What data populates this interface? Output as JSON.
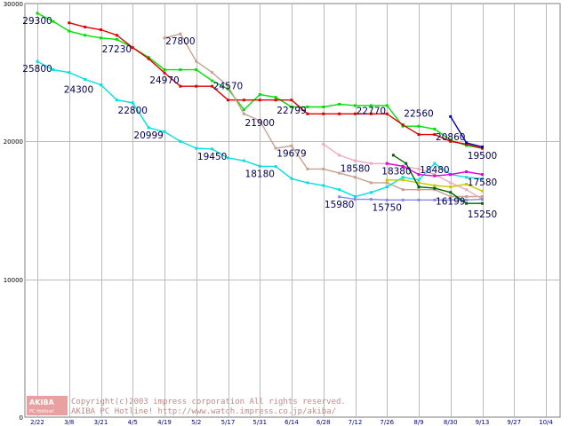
{
  "chart_data": {
    "type": "line",
    "title": "",
    "xlabel": "",
    "ylabel": "",
    "ylim": [
      0,
      30000
    ],
    "y_ticks": [
      "0",
      "10000",
      "20000",
      "30000"
    ],
    "x_ticks": [
      "2/22",
      "3/8",
      "3/21",
      "4/5",
      "4/19",
      "5/2",
      "5/17",
      "5/31",
      "6/14",
      "6/28",
      "7/12",
      "7/26",
      "8/9",
      "8/30",
      "9/13",
      "9/27",
      "10/4"
    ],
    "grid": true,
    "series": [
      {
        "name": "green",
        "color": "#00e000",
        "points": [
          [
            0,
            29300
          ],
          [
            0.5,
            28700
          ],
          [
            1,
            28000
          ],
          [
            1.5,
            27700
          ],
          [
            2,
            27500
          ],
          [
            2.5,
            27400
          ],
          [
            3,
            26800
          ],
          [
            3.5,
            26100
          ],
          [
            4,
            25200
          ],
          [
            4.5,
            25200
          ],
          [
            5,
            25200
          ],
          [
            5.5,
            24400
          ],
          [
            6,
            23800
          ],
          [
            6.5,
            22300
          ],
          [
            7,
            23400
          ],
          [
            7.5,
            23200
          ],
          [
            8,
            22500
          ],
          [
            8.5,
            22500
          ],
          [
            9,
            22500
          ],
          [
            9.5,
            22700
          ],
          [
            10,
            22600
          ],
          [
            10.5,
            22600
          ],
          [
            11,
            22600
          ],
          [
            11.5,
            21100
          ],
          [
            12,
            21100
          ],
          [
            12.5,
            20900
          ],
          [
            13,
            20100
          ],
          [
            13.5,
            19700
          ],
          [
            14,
            19500
          ]
        ]
      },
      {
        "name": "red",
        "color": "#e00000",
        "points": [
          [
            1,
            28600
          ],
          [
            1.5,
            28300
          ],
          [
            2,
            28100
          ],
          [
            2.5,
            27700
          ],
          [
            3,
            26800
          ],
          [
            3.5,
            26000
          ],
          [
            4,
            24970
          ],
          [
            4.5,
            24000
          ],
          [
            5,
            24000
          ],
          [
            5.5,
            24000
          ],
          [
            6,
            23000
          ],
          [
            6.5,
            23000
          ],
          [
            7,
            23000
          ],
          [
            7.5,
            23000
          ],
          [
            8,
            23000
          ],
          [
            8.5,
            22000
          ],
          [
            9,
            22000
          ],
          [
            9.5,
            22000
          ],
          [
            10,
            22000
          ],
          [
            10.5,
            22000
          ],
          [
            11,
            22000
          ],
          [
            11.5,
            21200
          ],
          [
            12,
            20500
          ],
          [
            12.5,
            20500
          ],
          [
            13,
            20000
          ],
          [
            13.5,
            19800
          ],
          [
            14,
            19500
          ]
        ]
      },
      {
        "name": "tan",
        "color": "#c8a090",
        "points": [
          [
            4,
            27500
          ],
          [
            4.5,
            27800
          ],
          [
            5,
            25800
          ],
          [
            5.5,
            25000
          ],
          [
            6,
            24000
          ],
          [
            6.5,
            22000
          ],
          [
            7,
            21500
          ],
          [
            7.5,
            19500
          ],
          [
            8,
            19679
          ],
          [
            8.5,
            18000
          ],
          [
            9,
            18000
          ],
          [
            9.5,
            17700
          ],
          [
            10,
            17400
          ],
          [
            10.5,
            17000
          ],
          [
            11,
            17000
          ],
          [
            11.5,
            16500
          ],
          [
            12,
            16500
          ],
          [
            12.5,
            16500
          ],
          [
            13,
            16000
          ],
          [
            13.5,
            16000
          ],
          [
            14,
            16000
          ]
        ]
      },
      {
        "name": "cyan",
        "color": "#00e0e0",
        "points": [
          [
            0,
            25800
          ],
          [
            0.5,
            25200
          ],
          [
            1,
            25000
          ],
          [
            1.5,
            24500
          ],
          [
            2,
            24100
          ],
          [
            2.5,
            23000
          ],
          [
            3,
            22800
          ],
          [
            3.5,
            21000
          ],
          [
            4,
            20700
          ],
          [
            4.5,
            20000
          ],
          [
            5,
            19500
          ],
          [
            5.5,
            19450
          ],
          [
            6,
            18800
          ],
          [
            6.5,
            18600
          ],
          [
            7,
            18200
          ],
          [
            7.5,
            18180
          ],
          [
            8,
            17300
          ],
          [
            8.5,
            17000
          ],
          [
            9,
            16800
          ],
          [
            9.5,
            16500
          ],
          [
            10,
            16000
          ],
          [
            10.5,
            16300
          ],
          [
            11,
            16700
          ],
          [
            11.5,
            17400
          ],
          [
            12,
            17200
          ],
          [
            12.5,
            18400
          ],
          [
            13,
            17600
          ],
          [
            13.5,
            17400
          ],
          [
            14,
            17300
          ]
        ]
      },
      {
        "name": "pink",
        "color": "#f0a8c0",
        "points": [
          [
            9,
            19800
          ],
          [
            9.5,
            19000
          ],
          [
            10,
            18600
          ],
          [
            10.5,
            18400
          ],
          [
            11,
            18380
          ],
          [
            11.5,
            18200
          ],
          [
            12,
            18000
          ],
          [
            12.5,
            17600
          ],
          [
            13,
            17000
          ],
          [
            13.5,
            16500
          ],
          [
            14,
            15800
          ]
        ]
      },
      {
        "name": "lavender",
        "color": "#8888f0",
        "points": [
          [
            9.5,
            15980
          ],
          [
            10,
            15800
          ],
          [
            10.5,
            15800
          ],
          [
            11,
            15750
          ],
          [
            11.5,
            15750
          ],
          [
            12,
            15750
          ],
          [
            12.5,
            15750
          ],
          [
            13,
            15750
          ],
          [
            13.5,
            15750
          ],
          [
            14,
            15800
          ]
        ]
      },
      {
        "name": "magenta",
        "color": "#e000e0",
        "points": [
          [
            11,
            18400
          ],
          [
            11.5,
            18200
          ],
          [
            12,
            17600
          ],
          [
            12.5,
            17500
          ],
          [
            13,
            17600
          ],
          [
            13.5,
            17800
          ],
          [
            14,
            17600
          ]
        ]
      },
      {
        "name": "olive",
        "color": "#c8c800",
        "points": [
          [
            11,
            17200
          ],
          [
            11.5,
            17200
          ],
          [
            12,
            17000
          ],
          [
            12.5,
            16800
          ],
          [
            13,
            16700
          ],
          [
            13.5,
            16900
          ],
          [
            14,
            16400
          ]
        ]
      },
      {
        "name": "darkgreen",
        "color": "#006400",
        "points": [
          [
            11.2,
            19000
          ],
          [
            11.6,
            18400
          ],
          [
            12,
            16700
          ],
          [
            12.5,
            16600
          ],
          [
            13,
            16300
          ],
          [
            13.5,
            15500
          ],
          [
            14,
            15500
          ]
        ]
      },
      {
        "name": "navy",
        "color": "#0000c0",
        "points": [
          [
            13,
            21800
          ],
          [
            13.5,
            19900
          ],
          [
            14,
            19600
          ]
        ]
      }
    ],
    "annotations": [
      {
        "text": "29300",
        "x": 0,
        "y": 29300
      },
      {
        "text": "27230",
        "x": 2.5,
        "y": 27230
      },
      {
        "text": "27800",
        "x": 4.5,
        "y": 27800
      },
      {
        "text": "25800",
        "x": 0,
        "y": 25800
      },
      {
        "text": "24300",
        "x": 1.3,
        "y": 24300
      },
      {
        "text": "24970",
        "x": 4,
        "y": 24970
      },
      {
        "text": "24570",
        "x": 6,
        "y": 24570
      },
      {
        "text": "22800",
        "x": 3,
        "y": 22800
      },
      {
        "text": "22799",
        "x": 8,
        "y": 22799
      },
      {
        "text": "22770",
        "x": 10.5,
        "y": 22770
      },
      {
        "text": "22560",
        "x": 12,
        "y": 22560
      },
      {
        "text": "21900",
        "x": 7,
        "y": 21900
      },
      {
        "text": "20999",
        "x": 3.5,
        "y": 20999
      },
      {
        "text": "20860",
        "x": 13,
        "y": 20860
      },
      {
        "text": "19679",
        "x": 8,
        "y": 19679
      },
      {
        "text": "19450",
        "x": 5.5,
        "y": 19450
      },
      {
        "text": "19500",
        "x": 14,
        "y": 19500
      },
      {
        "text": "18580",
        "x": 10,
        "y": 18580
      },
      {
        "text": "18380",
        "x": 11.3,
        "y": 18380
      },
      {
        "text": "18480",
        "x": 12.5,
        "y": 18480
      },
      {
        "text": "18180",
        "x": 7,
        "y": 18180
      },
      {
        "text": "17580",
        "x": 14,
        "y": 17580
      },
      {
        "text": "16199",
        "x": 13,
        "y": 16199
      },
      {
        "text": "15980",
        "x": 9.5,
        "y": 15980
      },
      {
        "text": "15750",
        "x": 11,
        "y": 15750
      },
      {
        "text": "15250",
        "x": 14,
        "y": 15250
      }
    ]
  },
  "watermark": {
    "logo_text": "AKIBA",
    "logo_sub": "PC Hotline!",
    "line1": "Copyright(c)2003 impress corporation All rights reserved.",
    "line2": "AKIBA PC Hotline!  http://www.watch.impress.co.jp/akiba/"
  },
  "colors": {
    "grid": "#bbbbbb",
    "axis": "#808080",
    "watermark": "#c08a8a",
    "logo_bg": "#e8a0a0"
  }
}
